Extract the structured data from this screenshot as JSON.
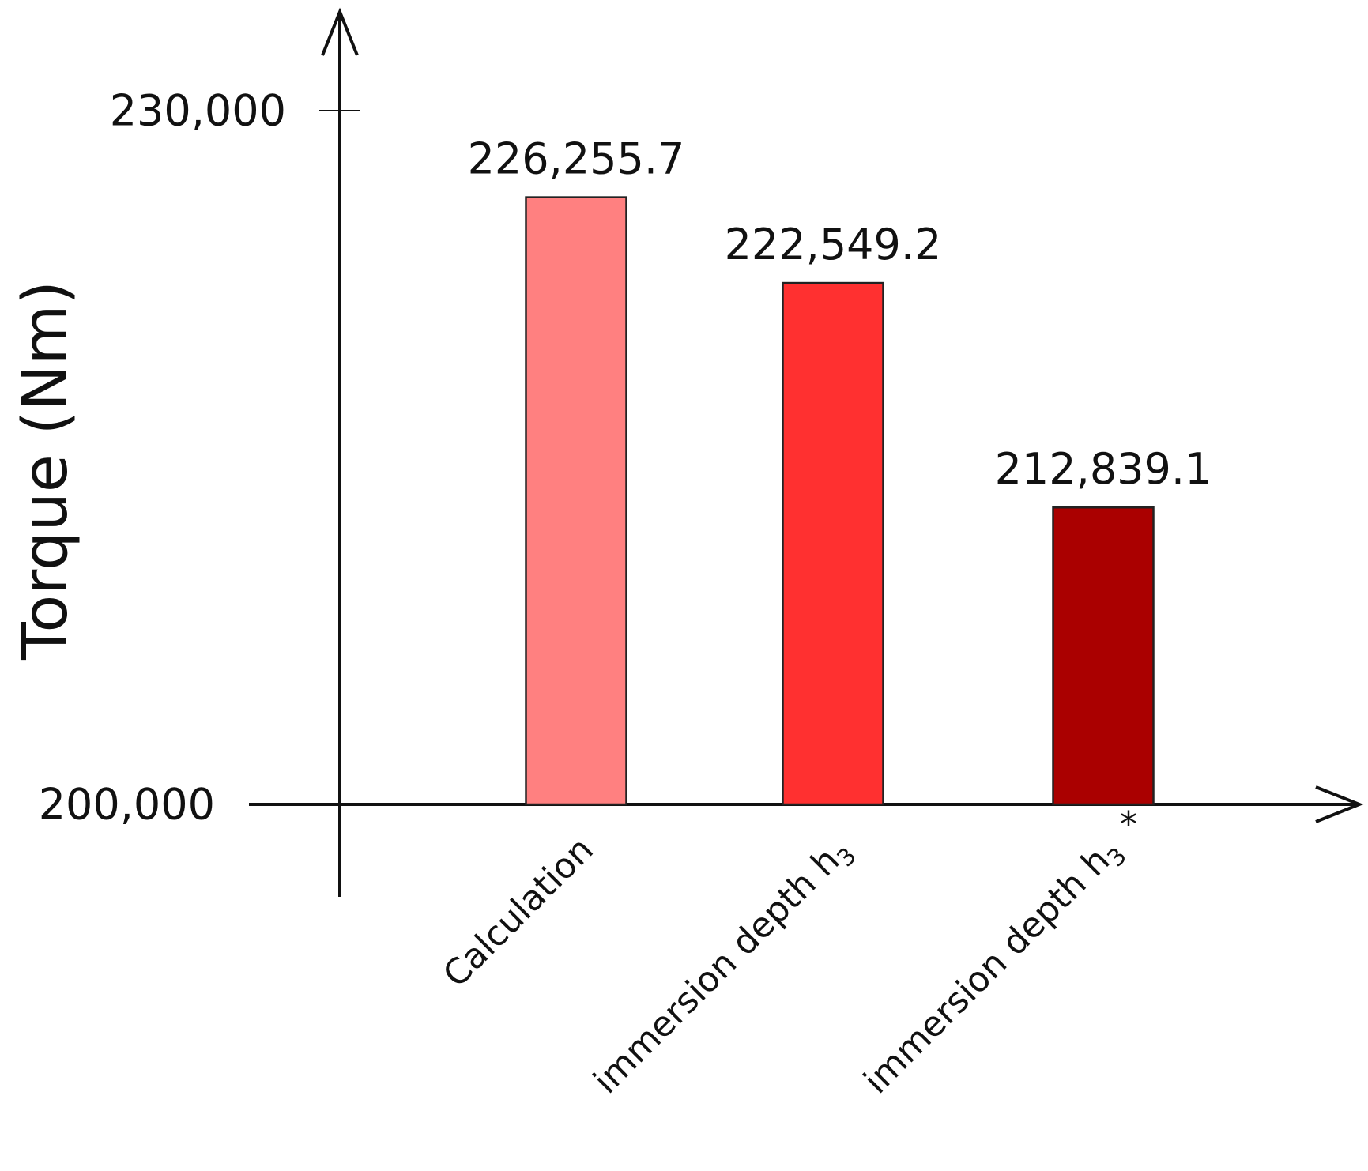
{
  "chart_data": {
    "type": "bar",
    "ylabel": "Torque (Nm)",
    "ylim": [
      200000,
      230000
    ],
    "y_ticks": [
      {
        "value": 200000,
        "label": "200,000"
      },
      {
        "value": 230000,
        "label": "230,000"
      }
    ],
    "categories": [
      {
        "text": "Calculation",
        "subscript": "",
        "superscript": ""
      },
      {
        "text": "immersion depth h",
        "subscript": "3",
        "superscript": ""
      },
      {
        "text": "immersion depth h",
        "subscript": "3",
        "superscript": "*"
      }
    ],
    "values": [
      226255.7,
      222549.2,
      212839.1
    ],
    "value_labels": [
      "226,255.7",
      "222,549.2",
      "212,839.1"
    ],
    "colors": [
      "#ff8080",
      "#ff3030",
      "#aa0000"
    ],
    "grid": false,
    "legend": "none"
  }
}
